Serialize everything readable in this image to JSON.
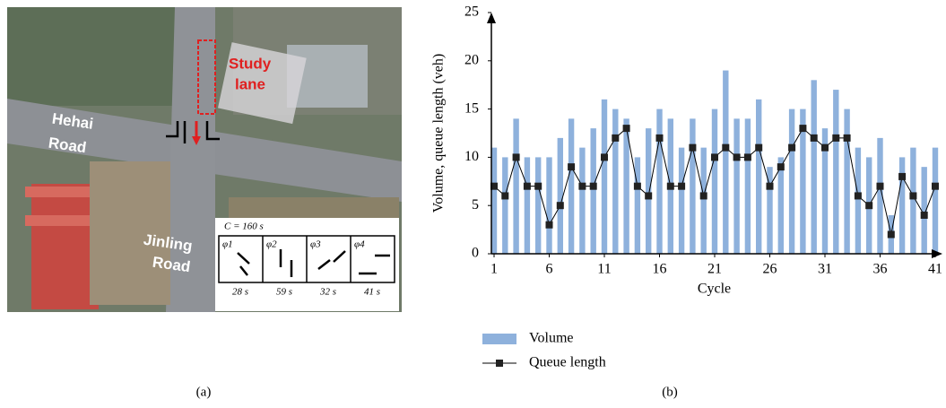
{
  "chart_data": {
    "type": "bar",
    "x": [
      1,
      2,
      3,
      4,
      5,
      6,
      7,
      8,
      9,
      10,
      11,
      12,
      13,
      14,
      15,
      16,
      17,
      18,
      19,
      20,
      21,
      22,
      23,
      24,
      25,
      26,
      27,
      28,
      29,
      30,
      31,
      32,
      33,
      34,
      35,
      36,
      37,
      38,
      39,
      40,
      41
    ],
    "series": [
      {
        "name": "Volume",
        "type": "bar",
        "color": "#8eb1dc",
        "values": [
          11,
          10,
          14,
          10,
          10,
          10,
          12,
          14,
          11,
          13,
          16,
          15,
          14,
          10,
          13,
          15,
          14,
          11,
          14,
          11,
          15,
          19,
          14,
          14,
          16,
          9,
          10,
          15,
          15,
          18,
          13,
          17,
          15,
          11,
          10,
          12,
          4,
          10,
          11,
          9,
          11
        ]
      },
      {
        "name": "Queue length",
        "type": "line",
        "color": "#000000",
        "values": [
          7,
          6,
          10,
          7,
          7,
          3,
          5,
          9,
          7,
          7,
          10,
          12,
          13,
          7,
          6,
          12,
          7,
          7,
          11,
          6,
          10,
          11,
          10,
          10,
          11,
          7,
          9,
          11,
          13,
          12,
          11,
          12,
          12,
          6,
          5,
          7,
          2,
          8,
          6,
          4,
          7
        ]
      }
    ],
    "xlabel": "Cycle",
    "ylabel": "Volume, queue length (veh)",
    "xlim": [
      1,
      41
    ],
    "xticks": [
      1,
      6,
      11,
      16,
      21,
      26,
      31,
      36,
      41
    ],
    "ylim": [
      0,
      25
    ],
    "yticks": [
      0,
      5,
      10,
      15,
      20,
      25
    ]
  },
  "image_panel": {
    "study_lane": [
      "Study",
      "lane"
    ],
    "hehai_road": [
      "Hehai",
      "Road"
    ],
    "jinling_road": [
      "Jinling",
      "Road"
    ],
    "cycle_length": "C = 160 s",
    "phases": [
      "φ1",
      "φ2",
      "φ3",
      "φ4"
    ],
    "durations": [
      "28 s",
      "59 s",
      "32 s",
      "41 s"
    ]
  },
  "panel_labels": [
    "(a)",
    "(b)"
  ]
}
